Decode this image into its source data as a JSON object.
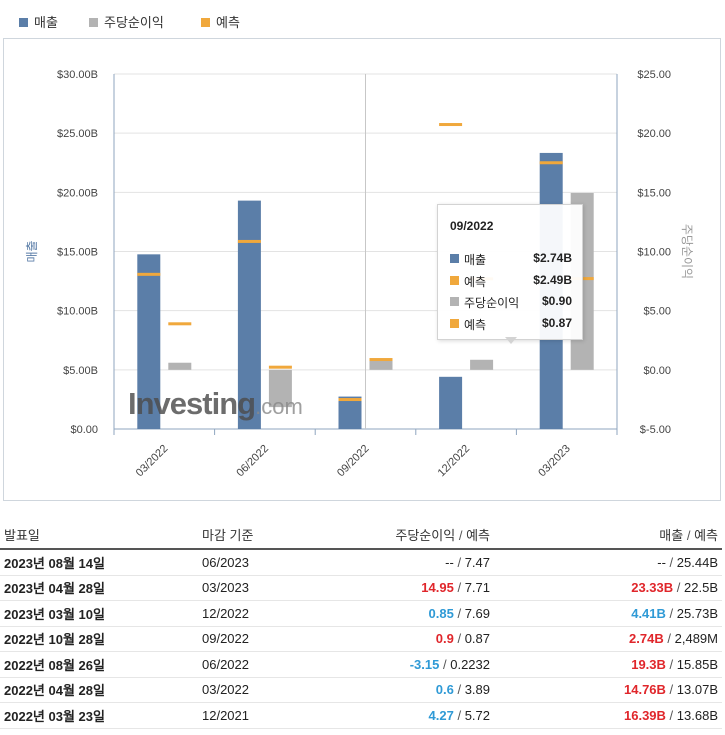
{
  "legend": [
    {
      "label": "매출",
      "color": "#5b7ea8"
    },
    {
      "label": "주당순이익",
      "color": "#b3b3b3"
    },
    {
      "label": "예측",
      "color": "#f0a83c"
    }
  ],
  "chart_data": {
    "type": "bar",
    "categories": [
      "03/2022",
      "06/2022",
      "09/2022",
      "12/2022",
      "03/2023"
    ],
    "series": [
      {
        "name": "매출",
        "axis": "left",
        "values": [
          14.76,
          19.3,
          2.74,
          4.41,
          23.33
        ]
      },
      {
        "name": "예측",
        "axis": "left",
        "values": [
          13.07,
          15.85,
          2.49,
          25.73,
          22.5
        ]
      },
      {
        "name": "주당순이익",
        "axis": "right",
        "values": [
          0.6,
          -3.15,
          0.9,
          0.85,
          14.95
        ]
      },
      {
        "name": "예측",
        "axis": "right",
        "values": [
          3.89,
          0.2232,
          0.87,
          7.69,
          7.71
        ]
      }
    ],
    "ylabel_left": "매출",
    "ylabel_right": "주당순이익",
    "ylim_left": [
      0,
      30
    ],
    "ylim_right": [
      -5,
      25
    ],
    "yticks_left": [
      "$0.00",
      "$5.00B",
      "$10.00B",
      "$15.00B",
      "$20.00B",
      "$25.00B",
      "$30.00B"
    ],
    "yticks_right": [
      "$-5.00",
      "$0.00",
      "$5.00",
      "$10.00",
      "$15.00",
      "$20.00",
      "$25.00"
    ],
    "hover_category": "09/2022",
    "tooltip": {
      "title": "09/2022",
      "rows": [
        {
          "label": "매출",
          "value": "$2.74B",
          "color": "#5b7ea8"
        },
        {
          "label": "예측",
          "value": "$2.49B",
          "color": "#f0a83c"
        },
        {
          "label": "주당순이익",
          "value": "$0.90",
          "color": "#b3b3b3"
        },
        {
          "label": "예측",
          "value": "$0.87",
          "color": "#f0a83c"
        }
      ]
    },
    "watermark": "Investing.com"
  },
  "table": {
    "headers": {
      "date": "발표일",
      "period": "마감 기준",
      "eps": "주당순이익",
      "rev": "매출",
      "sep": "/",
      "fc": "예측"
    },
    "rows": [
      {
        "date": "2023년 08월 14일",
        "period": "06/2023",
        "eps": "--",
        "eps_fc": "7.47",
        "rev": "--",
        "rev_fc": "25.44B",
        "eps_cls": "",
        "rev_cls": ""
      },
      {
        "date": "2023년 04월 28일",
        "period": "03/2023",
        "eps": "14.95",
        "eps_fc": "7.71",
        "rev": "23.33B",
        "rev_fc": "22.5B",
        "eps_cls": "neg",
        "rev_cls": "neg"
      },
      {
        "date": "2023년 03월 10일",
        "period": "12/2022",
        "eps": "0.85",
        "eps_fc": "7.69",
        "rev": "4.41B",
        "rev_fc": "25.73B",
        "eps_cls": "pos",
        "rev_cls": "pos"
      },
      {
        "date": "2022년 10월 28일",
        "period": "09/2022",
        "eps": "0.9",
        "eps_fc": "0.87",
        "rev": "2.74B",
        "rev_fc": "2,489M",
        "eps_cls": "neg",
        "rev_cls": "neg"
      },
      {
        "date": "2022년 08월 26일",
        "period": "06/2022",
        "eps": "-3.15",
        "eps_fc": "0.2232",
        "rev": "19.3B",
        "rev_fc": "15.85B",
        "eps_cls": "pos",
        "rev_cls": "neg"
      },
      {
        "date": "2022년 04월 28일",
        "period": "03/2022",
        "eps": "0.6",
        "eps_fc": "3.89",
        "rev": "14.76B",
        "rev_fc": "13.07B",
        "eps_cls": "pos",
        "rev_cls": "neg"
      },
      {
        "date": "2022년 03월 23일",
        "period": "12/2021",
        "eps": "4.27",
        "eps_fc": "5.72",
        "rev": "16.39B",
        "rev_fc": "13.68B",
        "eps_cls": "pos",
        "rev_cls": "neg"
      }
    ]
  }
}
